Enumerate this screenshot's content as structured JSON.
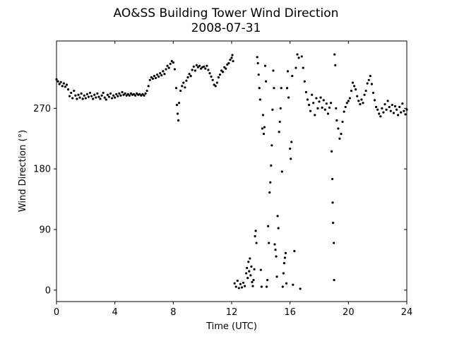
{
  "chart_data": {
    "type": "scatter",
    "title": "AO&SS Building Tower Wind Direction",
    "subtitle": "2008-07-31",
    "xlabel": "Time (UTC)",
    "ylabel": "Wind Direction (°)",
    "xlim": [
      0,
      24
    ],
    "ylim": [
      -17,
      370
    ],
    "xticks": [
      0,
      4,
      8,
      12,
      16,
      20,
      24
    ],
    "yticks": [
      0,
      90,
      180,
      270
    ],
    "grid": false,
    "marker_color": "#000000",
    "series": [
      {
        "points": [
          [
            0.0,
            313
          ],
          [
            0.1,
            310
          ],
          [
            0.2,
            306
          ],
          [
            0.3,
            309
          ],
          [
            0.4,
            303
          ],
          [
            0.5,
            307
          ],
          [
            0.6,
            302
          ],
          [
            0.7,
            305
          ],
          [
            0.8,
            298
          ],
          [
            0.9,
            288
          ],
          [
            1.0,
            293
          ],
          [
            1.1,
            285
          ],
          [
            1.2,
            296
          ],
          [
            1.3,
            289
          ],
          [
            1.4,
            284
          ],
          [
            1.5,
            290
          ],
          [
            1.6,
            286
          ],
          [
            1.7,
            292
          ],
          [
            1.8,
            284
          ],
          [
            1.9,
            289
          ],
          [
            2.0,
            285
          ],
          [
            2.1,
            291
          ],
          [
            2.2,
            287
          ],
          [
            2.3,
            293
          ],
          [
            2.4,
            288
          ],
          [
            2.5,
            284
          ],
          [
            2.6,
            290
          ],
          [
            2.7,
            286
          ],
          [
            2.8,
            292
          ],
          [
            2.9,
            287
          ],
          [
            3.0,
            284
          ],
          [
            3.1,
            289
          ],
          [
            3.2,
            293
          ],
          [
            3.3,
            286
          ],
          [
            3.4,
            283
          ],
          [
            3.5,
            290
          ],
          [
            3.6,
            287
          ],
          [
            3.7,
            292
          ],
          [
            3.8,
            285
          ],
          [
            3.9,
            289
          ],
          [
            4.0,
            286
          ],
          [
            4.1,
            291
          ],
          [
            4.2,
            288
          ],
          [
            4.3,
            292
          ],
          [
            4.4,
            289
          ],
          [
            4.5,
            294
          ],
          [
            4.6,
            290
          ],
          [
            4.7,
            292
          ],
          [
            4.8,
            289
          ],
          [
            4.9,
            291
          ],
          [
            5.0,
            289
          ],
          [
            5.1,
            292
          ],
          [
            5.2,
            290
          ],
          [
            5.3,
            291
          ],
          [
            5.4,
            289
          ],
          [
            5.5,
            292
          ],
          [
            5.6,
            290
          ],
          [
            5.7,
            291
          ],
          [
            5.8,
            289
          ],
          [
            5.9,
            291
          ],
          [
            6.0,
            289
          ],
          [
            6.1,
            292
          ],
          [
            6.2,
            296
          ],
          [
            6.3,
            303
          ],
          [
            6.4,
            312
          ],
          [
            6.5,
            316
          ],
          [
            6.6,
            314
          ],
          [
            6.7,
            318
          ],
          [
            6.8,
            315
          ],
          [
            6.9,
            320
          ],
          [
            7.0,
            317
          ],
          [
            7.1,
            322
          ],
          [
            7.2,
            319
          ],
          [
            7.3,
            325
          ],
          [
            7.4,
            321
          ],
          [
            7.5,
            328
          ],
          [
            7.6,
            333
          ],
          [
            7.7,
            330
          ],
          [
            7.8,
            336
          ],
          [
            7.9,
            340
          ],
          [
            8.0,
            338
          ],
          [
            8.1,
            328
          ],
          [
            8.2,
            300
          ],
          [
            8.25,
            275
          ],
          [
            8.3,
            262
          ],
          [
            8.35,
            252
          ],
          [
            8.4,
            278
          ],
          [
            8.5,
            296
          ],
          [
            8.6,
            303
          ],
          [
            8.7,
            308
          ],
          [
            8.8,
            301
          ],
          [
            8.9,
            311
          ],
          [
            9.0,
            316
          ],
          [
            9.1,
            321
          ],
          [
            9.2,
            318
          ],
          [
            9.3,
            327
          ],
          [
            9.4,
            332
          ],
          [
            9.5,
            326
          ],
          [
            9.6,
            334
          ],
          [
            9.7,
            331
          ],
          [
            9.8,
            333
          ],
          [
            9.9,
            329
          ],
          [
            10.0,
            331
          ],
          [
            10.1,
            332
          ],
          [
            10.2,
            329
          ],
          [
            10.3,
            333
          ],
          [
            10.4,
            327
          ],
          [
            10.5,
            322
          ],
          [
            10.6,
            317
          ],
          [
            10.7,
            312
          ],
          [
            10.8,
            305
          ],
          [
            10.9,
            303
          ],
          [
            11.0,
            308
          ],
          [
            11.1,
            316
          ],
          [
            11.2,
            320
          ],
          [
            11.3,
            326
          ],
          [
            11.4,
            324
          ],
          [
            11.5,
            331
          ],
          [
            11.6,
            329
          ],
          [
            11.7,
            335
          ],
          [
            11.8,
            337
          ],
          [
            11.9,
            342
          ],
          [
            12.0,
            345
          ],
          [
            12.05,
            349
          ],
          [
            12.1,
            340
          ],
          [
            12.2,
            10
          ],
          [
            12.3,
            5
          ],
          [
            12.4,
            14
          ],
          [
            12.5,
            3
          ],
          [
            12.6,
            9
          ],
          [
            12.7,
            4
          ],
          [
            12.8,
            11
          ],
          [
            12.9,
            6
          ],
          [
            13.0,
            25
          ],
          [
            13.05,
            33
          ],
          [
            13.1,
            18
          ],
          [
            13.15,
            42
          ],
          [
            13.2,
            28
          ],
          [
            13.25,
            47
          ],
          [
            13.3,
            22
          ],
          [
            13.35,
            35
          ],
          [
            13.4,
            12
          ],
          [
            13.45,
            6
          ],
          [
            13.5,
            15
          ],
          [
            13.55,
            31
          ],
          [
            13.6,
            80
          ],
          [
            13.65,
            88
          ],
          [
            13.7,
            70
          ],
          [
            13.75,
            346
          ],
          [
            13.8,
            337
          ],
          [
            13.85,
            320
          ],
          [
            13.9,
            300
          ],
          [
            13.95,
            283
          ],
          [
            14.0,
            30
          ],
          [
            14.05,
            5
          ],
          [
            14.1,
            240
          ],
          [
            14.15,
            260
          ],
          [
            14.2,
            232
          ],
          [
            14.25,
            242
          ],
          [
            14.3,
            333
          ],
          [
            14.35,
            310
          ],
          [
            14.4,
            5
          ],
          [
            14.45,
            15
          ],
          [
            14.5,
            95
          ],
          [
            14.55,
            70
          ],
          [
            14.6,
            145
          ],
          [
            14.65,
            160
          ],
          [
            14.7,
            185
          ],
          [
            14.75,
            215
          ],
          [
            14.8,
            268
          ],
          [
            14.85,
            326
          ],
          [
            14.9,
            300
          ],
          [
            14.95,
            68
          ],
          [
            15.0,
            60
          ],
          [
            15.05,
            50
          ],
          [
            15.1,
            20
          ],
          [
            15.15,
            110
          ],
          [
            15.2,
            92
          ],
          [
            15.25,
            235
          ],
          [
            15.3,
            250
          ],
          [
            15.35,
            270
          ],
          [
            15.4,
            300
          ],
          [
            15.45,
            176
          ],
          [
            15.5,
            5
          ],
          [
            15.55,
            25
          ],
          [
            15.6,
            40
          ],
          [
            15.65,
            48
          ],
          [
            15.7,
            55
          ],
          [
            15.75,
            10
          ],
          [
            15.8,
            300
          ],
          [
            15.85,
            325
          ],
          [
            15.9,
            286
          ],
          [
            16.0,
            210
          ],
          [
            16.05,
            195
          ],
          [
            16.1,
            220
          ],
          [
            16.15,
            318
          ],
          [
            16.2,
            8
          ],
          [
            16.3,
            58
          ],
          [
            16.4,
            330
          ],
          [
            16.5,
            350
          ],
          [
            16.6,
            345
          ],
          [
            16.7,
            2
          ],
          [
            16.8,
            347
          ],
          [
            16.9,
            330
          ],
          [
            17.0,
            310
          ],
          [
            17.1,
            294
          ],
          [
            17.2,
            283
          ],
          [
            17.3,
            275
          ],
          [
            17.4,
            266
          ],
          [
            17.5,
            290
          ],
          [
            17.6,
            278
          ],
          [
            17.7,
            260
          ],
          [
            17.8,
            285
          ],
          [
            17.9,
            270
          ],
          [
            18.0,
            280
          ],
          [
            18.1,
            286
          ],
          [
            18.2,
            271
          ],
          [
            18.3,
            282
          ],
          [
            18.4,
            268
          ],
          [
            18.5,
            277
          ],
          [
            18.6,
            262
          ],
          [
            18.7,
            271
          ],
          [
            18.8,
            278
          ],
          [
            18.85,
            206
          ],
          [
            18.9,
            165
          ],
          [
            18.92,
            130
          ],
          [
            18.95,
            100
          ],
          [
            19.0,
            70
          ],
          [
            19.02,
            15
          ],
          [
            19.05,
            350
          ],
          [
            19.1,
            334
          ],
          [
            19.15,
            270
          ],
          [
            19.2,
            252
          ],
          [
            19.3,
            240
          ],
          [
            19.4,
            225
          ],
          [
            19.5,
            232
          ],
          [
            19.6,
            250
          ],
          [
            19.7,
            265
          ],
          [
            19.8,
            272
          ],
          [
            19.9,
            278
          ],
          [
            20.0,
            281
          ],
          [
            20.1,
            285
          ],
          [
            20.2,
            296
          ],
          [
            20.3,
            308
          ],
          [
            20.4,
            303
          ],
          [
            20.5,
            298
          ],
          [
            20.6,
            288
          ],
          [
            20.7,
            281
          ],
          [
            20.8,
            276
          ],
          [
            20.9,
            283
          ],
          [
            21.0,
            278
          ],
          [
            21.1,
            290
          ],
          [
            21.2,
            296
          ],
          [
            21.3,
            307
          ],
          [
            21.4,
            312
          ],
          [
            21.5,
            318
          ],
          [
            21.6,
            306
          ],
          [
            21.7,
            293
          ],
          [
            21.8,
            282
          ],
          [
            21.9,
            272
          ],
          [
            22.0,
            268
          ],
          [
            22.1,
            262
          ],
          [
            22.2,
            258
          ],
          [
            22.3,
            270
          ],
          [
            22.4,
            264
          ],
          [
            22.5,
            276
          ],
          [
            22.6,
            268
          ],
          [
            22.7,
            281
          ],
          [
            22.8,
            272
          ],
          [
            22.9,
            266
          ],
          [
            23.0,
            275
          ],
          [
            23.1,
            263
          ],
          [
            23.2,
            273
          ],
          [
            23.3,
            268
          ],
          [
            23.4,
            260
          ],
          [
            23.5,
            272
          ],
          [
            23.6,
            264
          ],
          [
            23.7,
            277
          ],
          [
            23.8,
            266
          ],
          [
            23.9,
            261
          ],
          [
            24.0,
            268
          ]
        ]
      }
    ]
  }
}
